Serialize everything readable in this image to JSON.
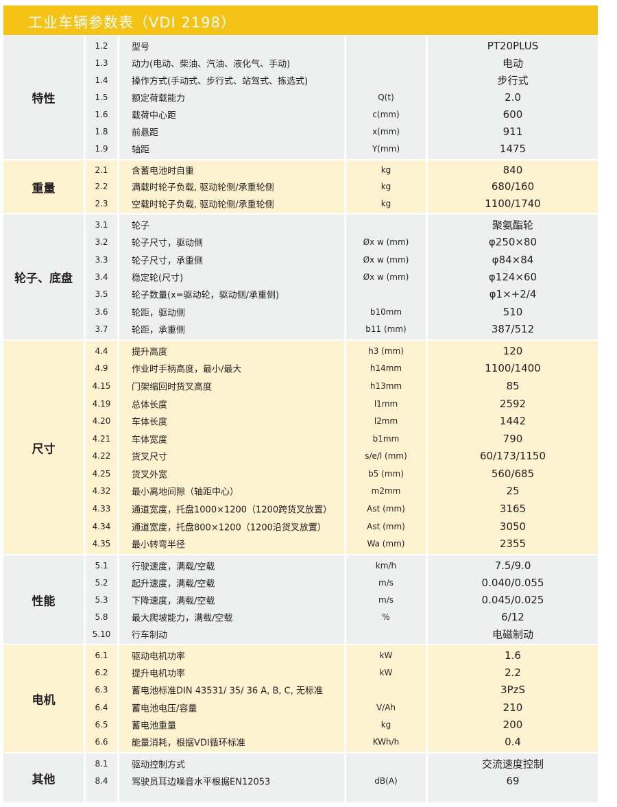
{
  "title": "工业车辆参数表（VDI 2198）",
  "colors": {
    "header": "#f5c216",
    "gray": "#eeefef",
    "yellow": "#fdf3d0"
  },
  "sections": [
    {
      "name": "特性",
      "tone": "gray",
      "rows": [
        {
          "no": "1.2",
          "desc": "型号",
          "unit": "",
          "value": "PT20PLUS"
        },
        {
          "no": "1.3",
          "desc": "动力(电动、柴油、汽油、液化气、手动)",
          "unit": "",
          "value": "电动"
        },
        {
          "no": "1.4",
          "desc": "操作方式(手动式、步行式、站驾式、拣选式)",
          "unit": "",
          "value": "步行式"
        },
        {
          "no": "1.5",
          "desc": "额定荷载能力",
          "unit": "Q(t)",
          "value": "2.0"
        },
        {
          "no": "1.6",
          "desc": "载荷中心距",
          "unit": "c(mm)",
          "value": "600"
        },
        {
          "no": "1.8",
          "desc": "前悬距",
          "unit": "x(mm)",
          "value": "911"
        },
        {
          "no": "1.9",
          "desc": "轴距",
          "unit": "Y(mm)",
          "value": "1475"
        }
      ]
    },
    {
      "name": "重量",
      "tone": "yellow",
      "rows": [
        {
          "no": "2.1",
          "desc": "含蓄电池时自重",
          "unit": "kg",
          "value": "840"
        },
        {
          "no": "2.2",
          "desc": "满载时轮子负载, 驱动轮侧/承重轮侧",
          "unit": "kg",
          "value": "680/160"
        },
        {
          "no": "2.3",
          "desc": "空载时轮子负载, 驱动轮侧/承重轮侧",
          "unit": "kg",
          "value": "1100/1740"
        }
      ]
    },
    {
      "name": "轮子、底盘",
      "tone": "gray",
      "rows": [
        {
          "no": "3.1",
          "desc": "轮子",
          "unit": "",
          "value": "聚氨酯轮"
        },
        {
          "no": "3.2",
          "desc": "轮子尺寸，驱动侧",
          "unit": "Øx w (mm)",
          "value": "φ250×80"
        },
        {
          "no": "3.3",
          "desc": "轮子尺寸，承重侧",
          "unit": "Øx w (mm)",
          "value": "φ84×84"
        },
        {
          "no": "3.4",
          "desc": "稳定轮(尺寸)",
          "unit": "Øx w (mm)",
          "value": "φ124×60"
        },
        {
          "no": "3.5",
          "desc": "轮子数量(x=驱动轮，驱动侧/承重侧)",
          "unit": "",
          "value": "φ1×+2/4"
        },
        {
          "no": "3.6",
          "desc": "轮距，驱动侧",
          "unit": "b10mm",
          "value": "510"
        },
        {
          "no": "3.7",
          "desc": "轮距，承重侧",
          "unit": "b11 (mm)",
          "value": "387/512"
        }
      ]
    },
    {
      "name": "尺寸",
      "tone": "yellow",
      "rows": [
        {
          "no": "4.4",
          "desc": "提升高度",
          "unit": "h3 (mm)",
          "value": "120"
        },
        {
          "no": "4.9",
          "desc": "作业时手柄高度，最小/最大",
          "unit": "h14mm",
          "value": "1100/1400"
        },
        {
          "no": "4.15",
          "desc": "门架缩回时货叉高度",
          "unit": "h13mm",
          "value": "85"
        },
        {
          "no": "4.19",
          "desc": "总体长度",
          "unit": "l1mm",
          "value": "2592"
        },
        {
          "no": "4.20",
          "desc": "车体长度",
          "unit": "l2mm",
          "value": "1442"
        },
        {
          "no": "4.21",
          "desc": "车体宽度",
          "unit": "b1mm",
          "value": "790"
        },
        {
          "no": "4.22",
          "desc": "货叉尺寸",
          "unit": "s/e/l (mm)",
          "value": "60/173/1150"
        },
        {
          "no": "4.25",
          "desc": "货叉外宽",
          "unit": "b5 (mm)",
          "value": "560/685"
        },
        {
          "no": "4.32",
          "desc": "最小离地间隙（轴距中心）",
          "unit": "m2mm",
          "value": "25"
        },
        {
          "no": "4.33",
          "desc": "通道宽度，托盘1000×1200（1200跨货叉放置）",
          "unit": "Ast (mm)",
          "value": "3165"
        },
        {
          "no": "4.34",
          "desc": "通道宽度，托盘800×1200（1200沿货叉放置）",
          "unit": "Ast (mm)",
          "value": "3050"
        },
        {
          "no": "4.35",
          "desc": "最小转弯半径",
          "unit": "Wa (mm)",
          "value": "2355"
        }
      ]
    },
    {
      "name": "性能",
      "tone": "gray",
      "rows": [
        {
          "no": "5.1",
          "desc": "行驶速度，满载/空载",
          "unit": "km/h",
          "value": "7.5/9.0"
        },
        {
          "no": "5.2",
          "desc": "起升速度，满载/空载",
          "unit": "m/s",
          "value": "0.040/0.055"
        },
        {
          "no": "5.3",
          "desc": "下降速度，满载/空载",
          "unit": "m/s",
          "value": "0.045/0.025"
        },
        {
          "no": "5.8",
          "desc": "最大爬坡能力，满载/空载",
          "unit": "%",
          "value": "6/12"
        },
        {
          "no": "5.10",
          "desc": "行车制动",
          "unit": "",
          "value": "电磁制动"
        }
      ]
    },
    {
      "name": "电机",
      "tone": "yellow",
      "rows": [
        {
          "no": "6.1",
          "desc": "驱动电机功率",
          "unit": "kW",
          "value": "1.6"
        },
        {
          "no": "6.2",
          "desc": "提升电机功率",
          "unit": "kW",
          "value": "2.2"
        },
        {
          "no": "6.3",
          "desc": "蓄电池标准DIN 43531/ 35/ 36 A, B, C, 无标准",
          "unit": "",
          "value": "3PzS"
        },
        {
          "no": "6.4",
          "desc": "蓄电池电压/容量",
          "unit": "V/Ah",
          "value": "210"
        },
        {
          "no": "6.5",
          "desc": "蓄电池重量",
          "unit": "kg",
          "value": "200"
        },
        {
          "no": "6.6",
          "desc": "能量消耗，根据VDI循环标准",
          "unit": "KWh/h",
          "value": "0.4"
        }
      ]
    },
    {
      "name": "其他",
      "tone": "gray",
      "rows": [
        {
          "no": "8.1",
          "desc": "驱动控制方式",
          "unit": "",
          "value": "交流速度控制"
        },
        {
          "no": "8.4",
          "desc": "驾驶员耳边噪音水平根据EN12053",
          "unit": "dB(A)",
          "value": "69"
        }
      ]
    }
  ]
}
